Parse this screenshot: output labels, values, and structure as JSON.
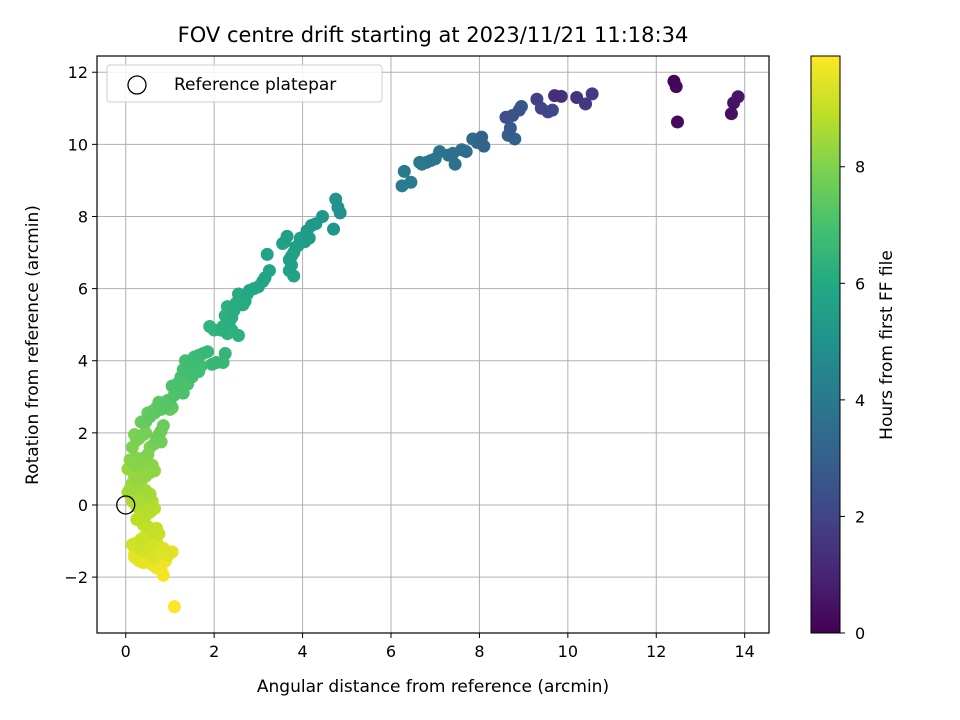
{
  "chart_data": {
    "type": "scatter",
    "title": "FOV centre drift starting at 2023/11/21 11:18:34",
    "xlabel": "Angular distance from reference (arcmin)",
    "ylabel": "Rotation from reference (arcmin)",
    "xlim": [
      -0.65,
      14.55
    ],
    "ylim": [
      -3.55,
      12.45
    ],
    "xticks": [
      0,
      2,
      4,
      6,
      8,
      10,
      12,
      14
    ],
    "yticks": [
      -2,
      0,
      2,
      4,
      6,
      8,
      10,
      12
    ],
    "grid": true,
    "legend": {
      "placement": "upper-left",
      "entries": [
        "Reference platepar"
      ]
    },
    "reference_point": {
      "x": 0,
      "y": 0
    },
    "colorbar": {
      "label": "Hours from first FF file",
      "colormap": "viridis",
      "range": [
        0,
        9.9
      ],
      "ticks": [
        0,
        2,
        4,
        6,
        8
      ]
    },
    "series": [
      {
        "points": [
          [
            12.4,
            11.75,
            0.1
          ],
          [
            12.45,
            11.6,
            0.2
          ],
          [
            12.48,
            10.62,
            0.3
          ],
          [
            13.7,
            10.85,
            0.4
          ],
          [
            13.75,
            11.15,
            0.5
          ],
          [
            13.85,
            11.32,
            0.6
          ],
          [
            9.7,
            11.35,
            1.3
          ],
          [
            9.85,
            11.33,
            1.4
          ],
          [
            10.2,
            11.3,
            1.5
          ],
          [
            10.4,
            11.12,
            1.6
          ],
          [
            10.55,
            11.4,
            1.7
          ],
          [
            9.3,
            11.25,
            1.9
          ],
          [
            9.4,
            11.0,
            2.0
          ],
          [
            9.55,
            10.9,
            2.1
          ],
          [
            9.65,
            10.95,
            2.2
          ],
          [
            8.6,
            10.75,
            2.4
          ],
          [
            8.75,
            10.8,
            2.5
          ],
          [
            8.9,
            10.95,
            2.6
          ],
          [
            8.95,
            11.05,
            2.7
          ],
          [
            8.7,
            10.45,
            2.8
          ],
          [
            8.65,
            10.25,
            2.9
          ],
          [
            8.8,
            10.15,
            3.0
          ],
          [
            8.05,
            10.2,
            3.1
          ],
          [
            8.1,
            9.95,
            3.2
          ],
          [
            7.95,
            10.05,
            3.3
          ],
          [
            7.85,
            10.15,
            3.4
          ],
          [
            7.7,
            9.8,
            3.5
          ],
          [
            7.6,
            9.85,
            3.55
          ],
          [
            7.4,
            9.75,
            3.6
          ],
          [
            7.45,
            9.45,
            3.7
          ],
          [
            7.3,
            9.7,
            3.75
          ],
          [
            7.1,
            9.8,
            3.8
          ],
          [
            7.0,
            9.6,
            3.85
          ],
          [
            6.9,
            9.55,
            3.9
          ],
          [
            6.8,
            9.5,
            3.95
          ],
          [
            6.7,
            9.45,
            4.0
          ],
          [
            6.65,
            9.5,
            4.0
          ],
          [
            6.3,
            9.25,
            4.05
          ],
          [
            6.45,
            8.95,
            4.1
          ],
          [
            6.25,
            8.85,
            4.1
          ],
          [
            4.85,
            8.1,
            5.0
          ],
          [
            4.8,
            8.25,
            5.0
          ],
          [
            4.75,
            8.48,
            5.1
          ],
          [
            4.7,
            7.65,
            5.2
          ],
          [
            4.45,
            8.0,
            5.2
          ],
          [
            4.3,
            7.8,
            5.3
          ],
          [
            4.2,
            7.75,
            5.35
          ],
          [
            4.1,
            7.6,
            5.4
          ],
          [
            4.15,
            7.4,
            5.4
          ],
          [
            4.05,
            7.3,
            5.45
          ],
          [
            3.95,
            7.4,
            5.5
          ],
          [
            3.9,
            7.2,
            5.55
          ],
          [
            3.85,
            7.15,
            5.55
          ],
          [
            3.8,
            7.0,
            5.6
          ],
          [
            3.75,
            6.9,
            5.6
          ],
          [
            3.7,
            6.8,
            5.6
          ],
          [
            3.65,
            7.45,
            5.6
          ],
          [
            3.6,
            7.3,
            5.65
          ],
          [
            3.55,
            7.25,
            5.65
          ],
          [
            3.75,
            6.65,
            5.65
          ],
          [
            3.7,
            6.5,
            5.7
          ],
          [
            3.8,
            6.35,
            5.7
          ],
          [
            3.2,
            6.95,
            5.7
          ],
          [
            3.25,
            6.5,
            5.75
          ],
          [
            3.15,
            6.3,
            5.8
          ],
          [
            3.1,
            6.2,
            5.85
          ],
          [
            3.0,
            6.05,
            5.9
          ],
          [
            2.9,
            6.0,
            5.9
          ],
          [
            2.8,
            5.95,
            5.95
          ],
          [
            2.75,
            5.85,
            6.0
          ],
          [
            2.7,
            5.65,
            6.05
          ],
          [
            2.65,
            5.55,
            6.05
          ],
          [
            2.6,
            5.75,
            6.05
          ],
          [
            2.55,
            5.85,
            6.1
          ],
          [
            2.5,
            5.6,
            6.15
          ],
          [
            2.45,
            5.4,
            6.15
          ],
          [
            2.4,
            5.2,
            6.2
          ],
          [
            2.35,
            5.1,
            6.2
          ],
          [
            2.3,
            5.5,
            6.25
          ],
          [
            2.25,
            5.25,
            6.25
          ],
          [
            2.2,
            4.95,
            6.3
          ],
          [
            2.15,
            4.85,
            6.3
          ],
          [
            2.55,
            4.7,
            6.3
          ],
          [
            2.4,
            4.85,
            6.35
          ],
          [
            2.3,
            4.75,
            6.35
          ],
          [
            1.9,
            4.95,
            6.4
          ],
          [
            2.0,
            4.85,
            6.45
          ],
          [
            2.25,
            4.2,
            6.5
          ],
          [
            2.2,
            3.95,
            6.55
          ],
          [
            2.05,
            3.95,
            6.55
          ],
          [
            1.95,
            3.9,
            6.6
          ],
          [
            1.85,
            4.25,
            6.6
          ],
          [
            1.75,
            4.2,
            6.65
          ],
          [
            1.65,
            4.15,
            6.7
          ],
          [
            1.55,
            4.1,
            6.75
          ],
          [
            1.5,
            4.0,
            6.75
          ],
          [
            1.45,
            3.85,
            6.8
          ],
          [
            1.7,
            3.85,
            6.85
          ],
          [
            1.65,
            3.7,
            6.85
          ],
          [
            1.5,
            3.55,
            6.9
          ],
          [
            1.35,
            4.0,
            6.9
          ],
          [
            1.3,
            3.75,
            6.95
          ],
          [
            1.25,
            3.55,
            7.0
          ],
          [
            1.2,
            3.4,
            7.0
          ],
          [
            1.4,
            3.35,
            7.05
          ],
          [
            1.3,
            3.1,
            7.05
          ],
          [
            1.15,
            3.25,
            7.1
          ],
          [
            1.05,
            3.3,
            7.1
          ],
          [
            1.1,
            3.05,
            7.15
          ],
          [
            1.0,
            2.85,
            7.2
          ],
          [
            0.95,
            2.9,
            7.25
          ],
          [
            0.9,
            2.75,
            7.25
          ],
          [
            0.85,
            2.8,
            7.3
          ],
          [
            0.8,
            2.65,
            7.35
          ],
          [
            0.75,
            2.85,
            7.35
          ],
          [
            0.7,
            2.7,
            7.4
          ],
          [
            0.65,
            2.55,
            7.4
          ],
          [
            0.6,
            2.6,
            7.45
          ],
          [
            1.05,
            2.7,
            7.45
          ],
          [
            1.0,
            2.65,
            7.5
          ],
          [
            0.55,
            2.45,
            7.5
          ],
          [
            0.5,
            2.55,
            7.55
          ],
          [
            0.45,
            2.3,
            7.55
          ],
          [
            0.35,
            2.3,
            7.6
          ],
          [
            0.85,
            2.2,
            7.6
          ],
          [
            0.8,
            2.05,
            7.65
          ],
          [
            0.75,
            1.95,
            7.7
          ],
          [
            0.7,
            1.85,
            7.7
          ],
          [
            0.8,
            1.75,
            7.75
          ],
          [
            0.65,
            1.7,
            7.75
          ],
          [
            0.45,
            2.0,
            7.8
          ],
          [
            0.4,
            1.95,
            7.85
          ],
          [
            0.3,
            1.85,
            7.85
          ],
          [
            0.25,
            1.8,
            7.9
          ],
          [
            0.2,
            1.95,
            7.9
          ],
          [
            0.15,
            1.6,
            7.95
          ],
          [
            0.55,
            1.6,
            8.0
          ],
          [
            0.5,
            1.4,
            8.0
          ],
          [
            0.4,
            1.3,
            8.05
          ],
          [
            0.35,
            1.2,
            8.05
          ],
          [
            0.25,
            1.3,
            8.1
          ],
          [
            0.2,
            1.1,
            8.1
          ],
          [
            0.1,
            1.25,
            8.15
          ],
          [
            0.6,
            1.1,
            8.15
          ],
          [
            0.65,
            0.95,
            8.2
          ],
          [
            0.55,
            0.9,
            8.25
          ],
          [
            0.45,
            0.8,
            8.25
          ],
          [
            0.35,
            0.95,
            8.3
          ],
          [
            0.3,
            0.7,
            8.3
          ],
          [
            0.2,
            0.8,
            8.35
          ],
          [
            0.05,
            1.0,
            8.35
          ],
          [
            0.15,
            0.6,
            8.4
          ],
          [
            0.1,
            0.45,
            8.4
          ],
          [
            0.25,
            0.5,
            8.45
          ],
          [
            0.35,
            0.55,
            8.5
          ],
          [
            0.45,
            0.4,
            8.5
          ],
          [
            0.55,
            0.3,
            8.55
          ],
          [
            0.05,
            0.35,
            8.55
          ],
          [
            0.2,
            0.25,
            8.6
          ],
          [
            0.3,
            0.15,
            8.6
          ],
          [
            0.4,
            0.2,
            8.65
          ],
          [
            0.15,
            0.1,
            8.7
          ],
          [
            0.25,
            -0.05,
            8.7
          ],
          [
            0.35,
            0.0,
            8.75
          ],
          [
            0.6,
            0.1,
            8.75
          ],
          [
            0.65,
            -0.1,
            8.8
          ],
          [
            0.55,
            -0.2,
            8.85
          ],
          [
            0.45,
            -0.3,
            8.85
          ],
          [
            0.35,
            -0.25,
            8.9
          ],
          [
            0.25,
            -0.4,
            8.9
          ],
          [
            0.4,
            -0.55,
            8.95
          ],
          [
            0.5,
            -0.6,
            9.0
          ],
          [
            0.6,
            -0.75,
            9.0
          ],
          [
            0.7,
            -0.65,
            9.05
          ],
          [
            0.75,
            -0.8,
            9.05
          ],
          [
            0.45,
            -0.85,
            9.1
          ],
          [
            0.35,
            -0.95,
            9.1
          ],
          [
            0.25,
            -1.05,
            9.15
          ],
          [
            0.15,
            -1.1,
            9.2
          ],
          [
            0.3,
            -1.2,
            9.2
          ],
          [
            0.4,
            -1.25,
            9.25
          ],
          [
            0.5,
            -1.15,
            9.25
          ],
          [
            0.6,
            -1.0,
            9.3
          ],
          [
            0.7,
            -1.05,
            9.3
          ],
          [
            0.55,
            -1.35,
            9.35
          ],
          [
            0.65,
            -1.45,
            9.4
          ],
          [
            0.75,
            -1.3,
            9.4
          ],
          [
            0.85,
            -1.2,
            9.45
          ],
          [
            0.95,
            -1.4,
            9.45
          ],
          [
            1.05,
            -1.3,
            9.5
          ],
          [
            0.2,
            -1.45,
            9.5
          ],
          [
            0.3,
            -1.55,
            9.55
          ],
          [
            0.4,
            -1.6,
            9.55
          ],
          [
            0.5,
            -1.5,
            9.6
          ],
          [
            0.6,
            -1.65,
            9.6
          ],
          [
            0.7,
            -1.75,
            9.65
          ],
          [
            0.8,
            -1.8,
            9.7
          ],
          [
            0.9,
            -1.55,
            9.7
          ],
          [
            0.85,
            -1.95,
            9.75
          ],
          [
            0.2,
            -1.35,
            9.75
          ],
          [
            1.1,
            -2.82,
            9.85
          ]
        ]
      }
    ]
  }
}
